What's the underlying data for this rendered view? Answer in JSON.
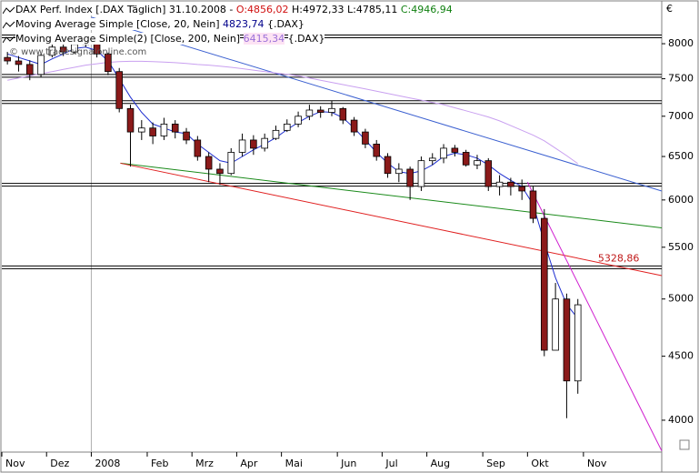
{
  "chart_data": {
    "type": "candlestick",
    "header": {
      "title": "DAX Perf. Index [.DAX Täglich] 31.10.2008 -",
      "open": "O:4856,02",
      "high_low": "H:4972,33 L:4785,11",
      "close": "C:4946,94"
    },
    "symbol": "{.DAX}",
    "currency": "€",
    "watermark": "© www.tradesignalonline.com",
    "log_scale": true,
    "ylim": [
      3772,
      8598
    ],
    "yticks": [
      4000,
      4500,
      5000,
      5500,
      6000,
      6500,
      7000,
      7500,
      8000
    ],
    "categories": [
      "Nov",
      null,
      null,
      null,
      "Dez",
      null,
      null,
      null,
      "2008",
      null,
      null,
      null,
      null,
      "Feb",
      null,
      null,
      null,
      "Mrz",
      null,
      null,
      null,
      "Apr",
      null,
      null,
      null,
      "Mai",
      null,
      null,
      null,
      null,
      "Jun",
      null,
      null,
      null,
      "Jul",
      null,
      null,
      null,
      "Aug",
      null,
      null,
      null,
      null,
      "Sep",
      null,
      null,
      null,
      "Okt",
      null,
      null,
      null,
      null,
      "Nov",
      null,
      null,
      null,
      null,
      null,
      null
    ],
    "up_color": "#ffffff",
    "down_color": "#8b1a1a",
    "open": [
      7800,
      7750,
      7700,
      7560,
      7830,
      7950,
      7880,
      7990,
      8050,
      7850,
      7600,
      7100,
      6800,
      6850,
      6750,
      6900,
      6800,
      6700,
      6500,
      6350,
      6300,
      6550,
      6700,
      6600,
      6720,
      6820,
      6900,
      7000,
      7080,
      7050,
      7100,
      6950,
      6800,
      6650,
      6500,
      6300,
      6350,
      6150,
      6450,
      6480,
      6600,
      6550,
      6400,
      6450,
      6150,
      6200,
      6150,
      6100,
      5800,
      4550,
      5000,
      4300,
      null,
      null,
      null,
      null,
      null,
      null,
      null
    ],
    "high": [
      7880,
      7820,
      7760,
      7860,
      8000,
      7990,
      8020,
      8080,
      8060,
      7870,
      7650,
      7150,
      6950,
      6920,
      6980,
      6950,
      6850,
      6750,
      6550,
      6420,
      6600,
      6780,
      6760,
      6780,
      6880,
      6960,
      7060,
      7150,
      7130,
      7200,
      7120,
      6990,
      6840,
      6700,
      6540,
      6420,
      6380,
      6500,
      6540,
      6650,
      6640,
      6580,
      6520,
      6480,
      6280,
      6250,
      6230,
      6150,
      5900,
      5150,
      5050,
      5000,
      null,
      null,
      null,
      null,
      null,
      null,
      null
    ],
    "low": [
      7700,
      7600,
      7480,
      7520,
      7800,
      7820,
      7850,
      7950,
      7800,
      7550,
      7050,
      6380,
      6700,
      6650,
      6700,
      6720,
      6650,
      6450,
      6200,
      6170,
      6280,
      6500,
      6520,
      6560,
      6700,
      6800,
      6860,
      6950,
      6980,
      7000,
      6900,
      6750,
      6600,
      6450,
      6250,
      6200,
      6000,
      6100,
      6400,
      6420,
      6500,
      6380,
      6350,
      6100,
      6050,
      6050,
      6000,
      5750,
      4500,
      4550,
      4015,
      4200,
      null,
      null,
      null,
      null,
      null,
      null,
      null
    ],
    "close": [
      7750,
      7700,
      7560,
      7830,
      7950,
      7880,
      7990,
      8050,
      7850,
      7600,
      7100,
      6800,
      6850,
      6750,
      6900,
      6800,
      6700,
      6500,
      6350,
      6300,
      6550,
      6700,
      6600,
      6720,
      6820,
      6900,
      7000,
      7080,
      7050,
      7100,
      6950,
      6800,
      6650,
      6500,
      6300,
      6350,
      6150,
      6450,
      6480,
      6600,
      6550,
      6400,
      6450,
      6150,
      6200,
      6150,
      6100,
      5800,
      4550,
      5000,
      4300,
      4947,
      null,
      null,
      null,
      null,
      null,
      null,
      null
    ],
    "series": [
      {
        "name": "Moving Average Simple [Close, 20, Nein]",
        "last_label": "4823,74",
        "label_color": "#00008b",
        "color": "#1f2fd0",
        "values": [
          7850,
          7800,
          7750,
          7700,
          7780,
          7850,
          7930,
          7950,
          7900,
          7750,
          7500,
          7250,
          7050,
          6900,
          6850,
          6800,
          6780,
          6650,
          6550,
          6450,
          6420,
          6500,
          6580,
          6650,
          6730,
          6830,
          6920,
          7000,
          7060,
          7050,
          6980,
          6850,
          6700,
          6550,
          6420,
          6320,
          6300,
          6330,
          6400,
          6500,
          6540,
          6520,
          6480,
          6400,
          6300,
          6220,
          6150,
          5950,
          5550,
          5200,
          4950,
          4824,
          null,
          null,
          null,
          null,
          null,
          null,
          null
        ]
      },
      {
        "name": "Moving Average Simple(2) [Close, 200, Nein]",
        "last_label": "6415,34",
        "label_color": "#9a70d8",
        "color": "#c9a0f0",
        "values": [
          7480,
          7510,
          7540,
          7570,
          7600,
          7630,
          7660,
          7690,
          7710,
          7730,
          7740,
          7745,
          7745,
          7740,
          7735,
          7725,
          7715,
          7700,
          7690,
          7675,
          7660,
          7640,
          7620,
          7600,
          7580,
          7560,
          7540,
          7510,
          7480,
          7450,
          7420,
          7390,
          7360,
          7330,
          7300,
          7270,
          7240,
          7210,
          7180,
          7150,
          7110,
          7070,
          7030,
          6990,
          6940,
          6880,
          6820,
          6760,
          6690,
          6600,
          6510,
          6415,
          null,
          null,
          null,
          null,
          null,
          null,
          null
        ]
      }
    ],
    "trendlines": [
      {
        "color": "#3a5fd0",
        "x": [
          8,
          59
        ],
        "values": [
          8400,
          6100
        ]
      },
      {
        "color": "#1a8a1a",
        "x": [
          10.6,
          59
        ],
        "values": [
          6420,
          5700
        ]
      },
      {
        "color": "#e02020",
        "x": [
          10.6,
          59
        ],
        "values": [
          6420,
          5220
        ]
      },
      {
        "color": "#d020d0",
        "x": [
          47,
          59
        ],
        "values": [
          6200,
          3780
        ]
      }
    ],
    "levels": [
      8108,
      7540,
      7185,
      6170,
      5300
    ],
    "annotation": {
      "text": "5328,86",
      "x": 53.3,
      "value": 5328.86,
      "color": "#c01818"
    }
  }
}
